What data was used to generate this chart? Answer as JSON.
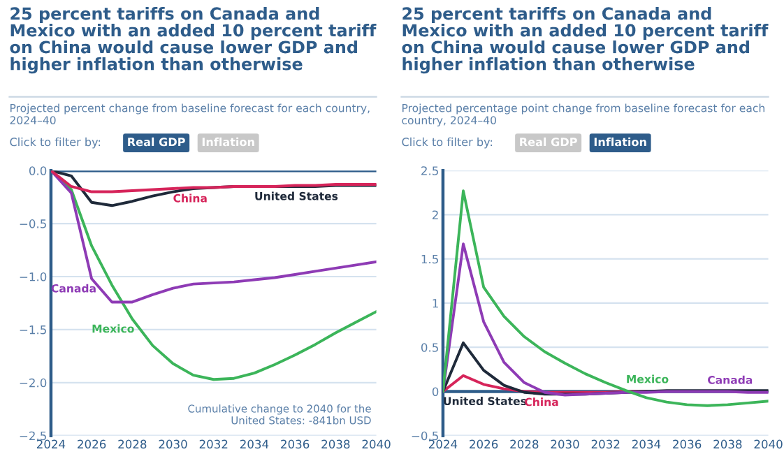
{
  "chart_data": [
    {
      "type": "line",
      "title": "25 percent tariffs on Canada and Mexico with an added 10 percent tariff on China would cause lower GDP and higher inflation than otherwise",
      "subtitle": "Projected percent change from baseline forecast for each country, 2024–40",
      "annotations": [
        "Click to filter by:",
        "Real GDP",
        "Inflation",
        "Cumulative change to 2040 for the\nUnited States: -841bn USD"
      ],
      "x": [
        2024,
        2025,
        2026,
        2027,
        2028,
        2029,
        2030,
        2031,
        2032,
        2033,
        2034,
        2035,
        2036,
        2037,
        2038,
        2039,
        2040
      ],
      "series": [
        {
          "name": "China",
          "color": "#d6245a",
          "values": [
            0,
            -0.15,
            -0.2,
            -0.2,
            -0.19,
            -0.18,
            -0.17,
            -0.16,
            -0.16,
            -0.15,
            -0.15,
            -0.15,
            -0.14,
            -0.14,
            -0.13,
            -0.13,
            -0.13
          ]
        },
        {
          "name": "United States",
          "color": "#1f2a3a",
          "values": [
            0,
            -0.05,
            -0.3,
            -0.33,
            -0.29,
            -0.24,
            -0.2,
            -0.17,
            -0.16,
            -0.15,
            -0.15,
            -0.15,
            -0.15,
            -0.15,
            -0.14,
            -0.14,
            -0.14
          ]
        },
        {
          "name": "Canada",
          "color": "#8e3bb5",
          "values": [
            0,
            -0.21,
            -1.02,
            -1.24,
            -1.24,
            -1.17,
            -1.11,
            -1.07,
            -1.06,
            -1.05,
            -1.03,
            -1.01,
            -0.98,
            -0.95,
            -0.92,
            -0.89,
            -0.86
          ]
        },
        {
          "name": "Mexico",
          "color": "#3cb55a",
          "values": [
            0,
            -0.18,
            -0.71,
            -1.08,
            -1.4,
            -1.65,
            -1.82,
            -1.93,
            -1.97,
            -1.96,
            -1.91,
            -1.83,
            -1.74,
            -1.64,
            -1.53,
            -1.43,
            -1.33
          ]
        }
      ],
      "xlim": [
        2024,
        2040
      ],
      "xticks": [
        2024,
        2026,
        2028,
        2030,
        2032,
        2034,
        2036,
        2038,
        2040
      ],
      "ylim": [
        -2.5,
        0
      ],
      "yticks": [
        {
          "value": 0,
          "label": "0.0"
        },
        {
          "value": -0.5,
          "label": "−0.5"
        },
        {
          "value": -1,
          "label": "−1.0"
        },
        {
          "value": -1.5,
          "label": "−1.5"
        },
        {
          "value": -2,
          "label": "−2.0"
        },
        {
          "value": -2.5,
          "label": "−2.5"
        }
      ],
      "ref_lines": [
        {
          "axis": "y",
          "value": 0,
          "color": "#2e5c8a"
        }
      ],
      "grid": "y",
      "legend": false,
      "marker": "none",
      "line_style": "solid"
    },
    {
      "type": "line",
      "title": "25 percent tariffs on Canada and Mexico with an added 10 percent tariff on China would cause lower GDP and higher inflation than otherwise",
      "subtitle": "Projected percentage point change from baseline forecast for each country, 2024–40",
      "annotations": [
        "Click to filter by:",
        "Real GDP",
        "Inflation"
      ],
      "x": [
        2024,
        2025,
        2026,
        2027,
        2028,
        2029,
        2030,
        2031,
        2032,
        2033,
        2034,
        2035,
        2036,
        2037,
        2038,
        2039,
        2040
      ],
      "series": [
        {
          "name": "Mexico",
          "color": "#3cb55a",
          "values": [
            0,
            2.27,
            1.18,
            0.85,
            0.62,
            0.45,
            0.32,
            0.2,
            0.1,
            0.01,
            -0.07,
            -0.12,
            -0.15,
            -0.16,
            -0.15,
            -0.13,
            -0.11
          ]
        },
        {
          "name": "Canada",
          "color": "#8e3bb5",
          "values": [
            0,
            1.67,
            0.79,
            0.33,
            0.1,
            -0.01,
            -0.04,
            -0.03,
            -0.02,
            -0.01,
            -0.01,
            0,
            0,
            0,
            0,
            -0.01,
            -0.01
          ]
        },
        {
          "name": "United States",
          "color": "#1f2a3a",
          "values": [
            0,
            0.55,
            0.24,
            0.07,
            -0.01,
            -0.03,
            -0.03,
            -0.03,
            -0.02,
            -0.01,
            0,
            0.01,
            0.01,
            0.01,
            0.01,
            0.01,
            0.01
          ]
        },
        {
          "name": "China",
          "color": "#d6245a",
          "values": [
            0,
            0.18,
            0.08,
            0.03,
            0,
            -0.01,
            -0.01,
            -0.01,
            -0.01,
            0,
            0,
            null,
            null,
            null,
            null,
            null,
            null
          ]
        }
      ],
      "xlim": [
        2024,
        2040
      ],
      "xticks": [
        2024,
        2026,
        2028,
        2030,
        2032,
        2034,
        2036,
        2038,
        2040
      ],
      "ylim": [
        -0.5,
        2.5
      ],
      "yticks": [
        2.5,
        2,
        1.5,
        1,
        0.5,
        0,
        {
          "value": -0.5,
          "label": "−0.5"
        }
      ],
      "ref_lines": [
        {
          "axis": "y",
          "value": 0,
          "color": "#2e5c8a"
        }
      ],
      "grid": "y",
      "legend": false,
      "marker": "none",
      "line_style": "solid"
    }
  ]
}
